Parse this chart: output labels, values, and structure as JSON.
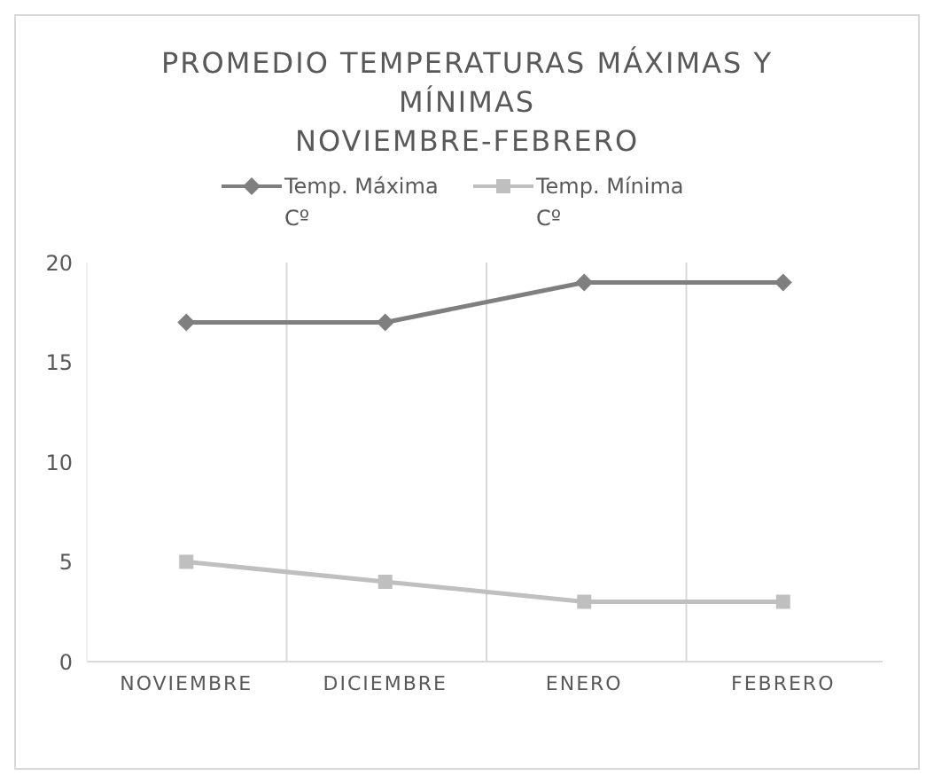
{
  "chart_data": {
    "type": "line",
    "title": "PROMEDIO TEMPERATURAS MÁXIMAS Y MÍNIMAS",
    "subtitle": "NOVIEMBRE-FEBRERO",
    "categories": [
      "NOVIEMBRE",
      "DICIEMBRE",
      "ENERO",
      "FEBRERO"
    ],
    "series": [
      {
        "name": "Temp. Máxima Cº",
        "color": "#7f7f7f",
        "marker": "diamond",
        "values": [
          17,
          17,
          19,
          19
        ]
      },
      {
        "name": "Temp. Mínima Cº",
        "color": "#bfbfbf",
        "marker": "square",
        "values": [
          5,
          4,
          3,
          3
        ]
      }
    ],
    "ylim": [
      0,
      20
    ],
    "yticks": [
      0,
      5,
      10,
      15,
      20
    ],
    "grid": "x",
    "legend": "top",
    "line_style": "solid"
  }
}
